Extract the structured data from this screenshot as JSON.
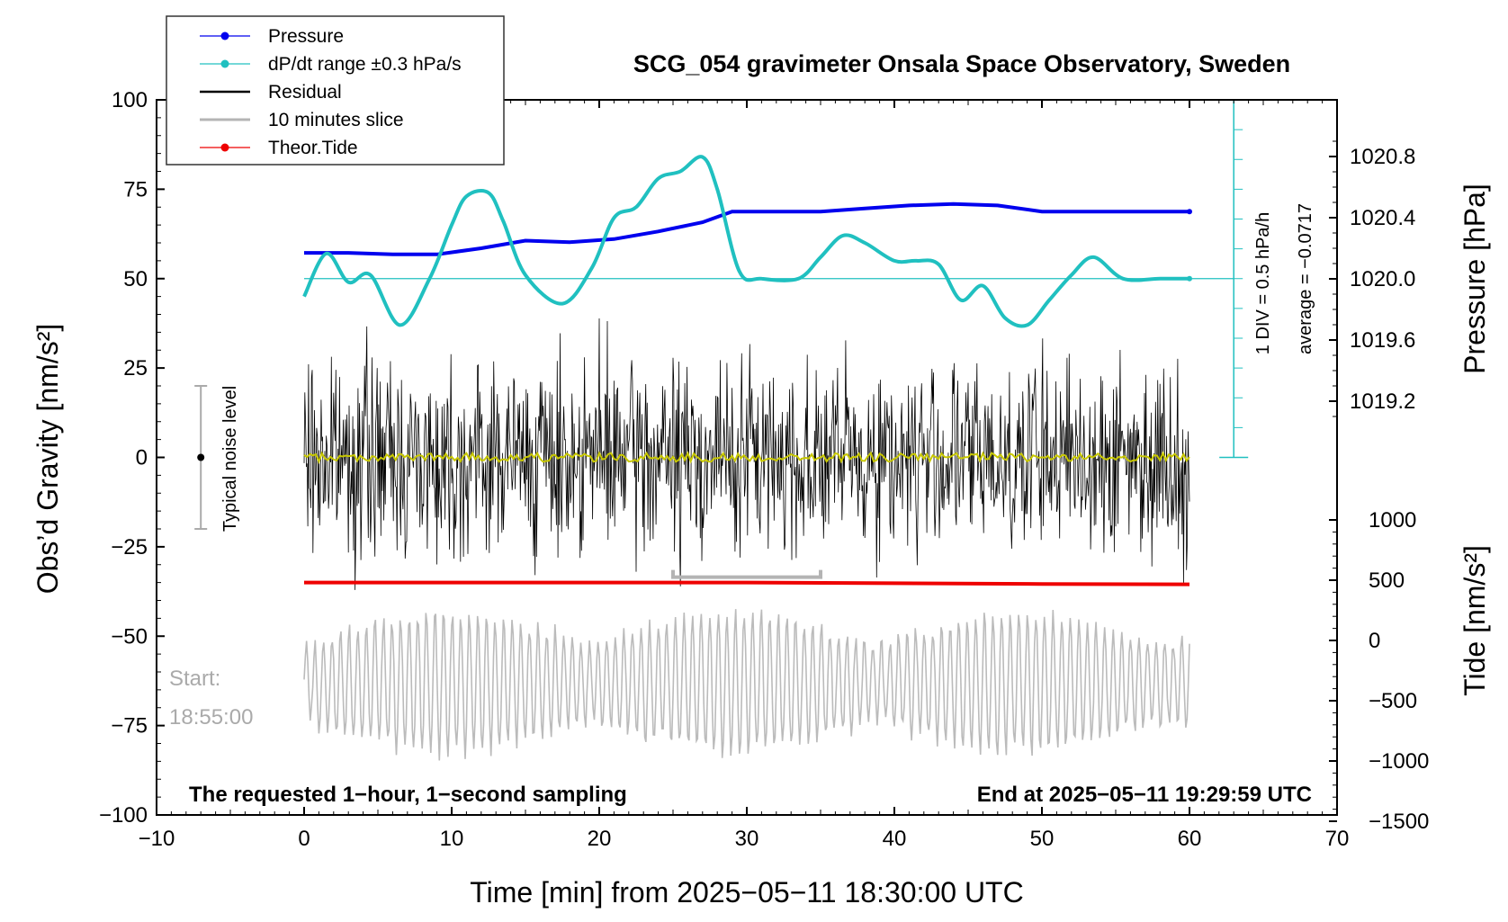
{
  "chart_data": {
    "type": "line",
    "title": "SCG_054 gravimeter Onsala Space Observatory, Sweden",
    "xlabel": "Time [min] from 2025−05−11 18:30:00 UTC",
    "ylabel_left": "Obs’d Gravity [nm/s²]",
    "ylabel_right_top": "Pressure [hPa]",
    "ylabel_right_bottom": "Tide [nm/s²]",
    "xlim": [
      -10,
      70
    ],
    "ylim_left": [
      -100,
      100
    ],
    "x_ticks": [
      "−10",
      "0",
      "10",
      "20",
      "30",
      "40",
      "50",
      "60",
      "70"
    ],
    "y_ticks_left": [
      "−100",
      "−75",
      "−50",
      "−25",
      "0",
      "25",
      "50",
      "75",
      "100"
    ],
    "pressure_ticks": [
      "1019.2",
      "1019.6",
      "1020.0",
      "1020.4",
      "1020.8"
    ],
    "tide_ticks": [
      "−1500",
      "−1000",
      "−500",
      "0",
      "500",
      "1000"
    ],
    "legend": {
      "placement": "top-left",
      "entries": [
        {
          "label": "Pressure",
          "color": "#0000ee"
        },
        {
          "label": "dP/dt range ±0.3 hPa/s",
          "color": "#20c0c0"
        },
        {
          "label": "Residual",
          "color": "#000000"
        },
        {
          "label": "10 minutes slice",
          "color": "#b4b4b4"
        },
        {
          "label": "Theor.Tide",
          "color": "#ee0000"
        }
      ]
    },
    "annotations": {
      "noise": "Typical noise level",
      "start_label": "Start:",
      "start_time": "18:55:00",
      "bottom_left": "The requested 1−hour, 1−second sampling",
      "bottom_right": "End at 2025−05−11 19:29:59 UTC",
      "div": "1 DIV = 0.5 hPa/h",
      "average": "average = −0.0717"
    },
    "pressure_series": {
      "name": "Pressure",
      "x": [
        0,
        3,
        6,
        9,
        12,
        15,
        18,
        21,
        24,
        27,
        29,
        32,
        35,
        38,
        41,
        44,
        47,
        50,
        53,
        56,
        60
      ],
      "y": [
        1020.17,
        1020.17,
        1020.16,
        1020.16,
        1020.2,
        1020.25,
        1020.24,
        1020.26,
        1020.31,
        1020.37,
        1020.44,
        1020.44,
        1020.44,
        1020.46,
        1020.48,
        1020.49,
        1020.48,
        1020.44,
        1020.44,
        1020.44,
        1020.44
      ]
    },
    "dpdt_series": {
      "name": "dP/dt range ±0.3 hPa/s",
      "x": [
        0,
        1.5,
        3,
        4.5,
        6.5,
        8.5,
        10,
        11,
        12.5,
        13.5,
        15,
        17.5,
        19.5,
        21,
        22.5,
        24,
        25.5,
        27,
        28,
        29.5,
        31,
        33.5,
        35,
        36.5,
        38,
        40,
        41.5,
        43,
        44.5,
        46,
        47.5,
        49,
        50.5,
        52,
        53.5,
        55.5,
        58,
        60
      ],
      "y": [
        45,
        57,
        49,
        51,
        37,
        50,
        65,
        73,
        74,
        66,
        51,
        43,
        53,
        67,
        70,
        78,
        80,
        84,
        75,
        52,
        50,
        50,
        56,
        62,
        60,
        55,
        55,
        54,
        44,
        48,
        39,
        37,
        44,
        51,
        56,
        50,
        50,
        50
      ]
    },
    "dpdt_reference_line": 50,
    "tide_series": {
      "name": "Theor.Tide",
      "x": [
        0,
        10,
        20,
        30,
        40,
        50,
        60
      ],
      "y": [
        -35,
        -35,
        -35,
        -35,
        -35.2,
        -35.4,
        -35.5
      ]
    },
    "residual": {
      "name": "Residual",
      "center": 0,
      "amplitude": 15,
      "max": 28,
      "min": -24
    },
    "slice": {
      "name": "10 minutes slice",
      "start_min": 25,
      "end_min": 35
    },
    "noise_bar": {
      "x": -7,
      "low": -20,
      "high": 20,
      "center": 0
    },
    "grid": false
  }
}
